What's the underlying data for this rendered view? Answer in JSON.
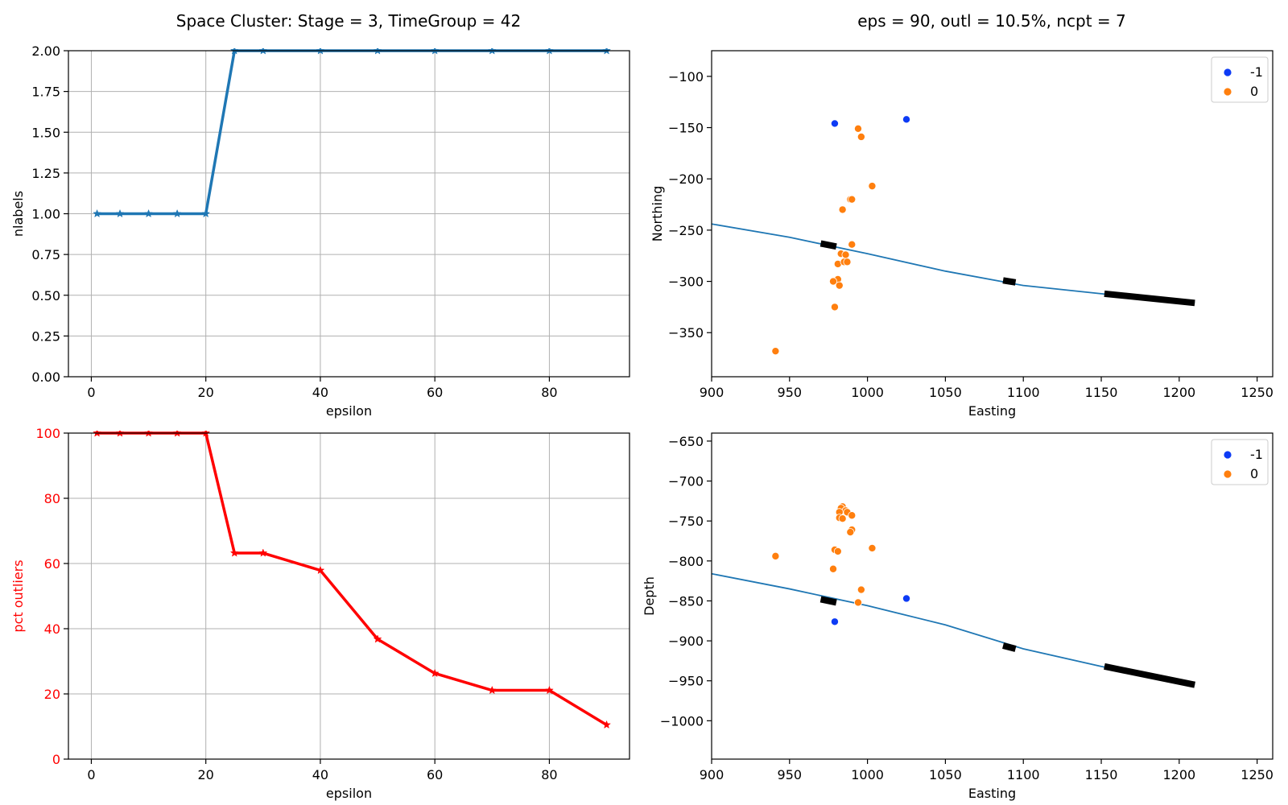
{
  "titles": {
    "left": "Space Cluster: Stage = 3, TimeGroup = 42",
    "right": "eps = 90, outl = 10.5%, ncpt = 7"
  },
  "colors": {
    "nlabels_line": "#1f77b4",
    "outliers_line": "#ff0000",
    "cluster_-1": "#0d3bf5",
    "cluster_0": "#ff7f0e",
    "well_path": "#1f77b4",
    "stage_segments": "#000000"
  },
  "chart_data": [
    {
      "type": "line",
      "xlabel": "epsilon",
      "ylabel": "nlabels",
      "xlim": [
        -4,
        94
      ],
      "ylim": [
        0,
        2
      ],
      "xticks": [
        "0",
        "20",
        "40",
        "60",
        "80"
      ],
      "yticks": [
        "0.00",
        "0.25",
        "0.50",
        "0.75",
        "1.00",
        "1.25",
        "1.50",
        "1.75",
        "2.00"
      ],
      "grid": true,
      "marker": "star",
      "x": [
        1,
        5,
        10,
        15,
        20,
        25,
        30,
        40,
        50,
        60,
        70,
        80,
        90
      ],
      "series": [
        {
          "values": [
            1,
            1,
            1,
            1,
            1,
            2,
            2,
            2,
            2,
            2,
            2,
            2,
            2
          ]
        }
      ]
    },
    {
      "type": "scatter",
      "xlabel": "Easting",
      "ylabel": "Northing",
      "xlim": [
        900,
        1260
      ],
      "ylim": [
        -393,
        -75
      ],
      "xticks": [
        "900",
        "950",
        "1000",
        "1050",
        "1100",
        "1150",
        "1200",
        "1250"
      ],
      "yticks": [
        "−100",
        "−150",
        "−200",
        "−250",
        "−300",
        "−350"
      ],
      "grid": false,
      "legend": {
        "placement": "top-right",
        "entries": [
          "-1",
          "0"
        ]
      },
      "series": [
        {
          "name": "-1",
          "points": [
            [
              979,
              -146
            ],
            [
              1025,
              -142
            ]
          ]
        },
        {
          "name": "0",
          "points": [
            [
              994,
              -151
            ],
            [
              996,
              -159
            ],
            [
              1003,
              -207
            ],
            [
              989,
              -220
            ],
            [
              990,
              -220
            ],
            [
              984,
              -230
            ],
            [
              990,
              -264
            ],
            [
              983,
              -273
            ],
            [
              986,
              -274
            ],
            [
              981,
              -283
            ],
            [
              985,
              -281
            ],
            [
              987,
              -281
            ],
            [
              981,
              -298
            ],
            [
              978,
              -300
            ],
            [
              982,
              -304
            ],
            [
              979,
              -325
            ],
            [
              941,
              -368
            ]
          ]
        }
      ],
      "well_path": {
        "points": [
          [
            900,
            -244
          ],
          [
            950,
            -257
          ],
          [
            1000,
            -273
          ],
          [
            1050,
            -290
          ],
          [
            1100,
            -304
          ],
          [
            1150,
            -312
          ],
          [
            1210,
            -321
          ]
        ]
      },
      "stage_segments": [
        {
          "from": [
            970,
            -263
          ],
          "to": [
            980,
            -266
          ]
        },
        {
          "from": [
            1087,
            -299
          ],
          "to": [
            1095,
            -301
          ]
        },
        {
          "from": [
            1152,
            -312
          ],
          "to": [
            1210,
            -321
          ]
        }
      ]
    },
    {
      "type": "line",
      "xlabel": "epsilon",
      "ylabel": "pct outliers",
      "xlim": [
        -4,
        94
      ],
      "ylim": [
        0,
        100
      ],
      "xticks": [
        "0",
        "20",
        "40",
        "60",
        "80"
      ],
      "yticks": [
        "0",
        "20",
        "40",
        "60",
        "80",
        "100"
      ],
      "grid": true,
      "marker": "star",
      "x": [
        1,
        5,
        10,
        15,
        20,
        25,
        30,
        40,
        50,
        60,
        70,
        80,
        90
      ],
      "series": [
        {
          "values": [
            100,
            100,
            100,
            100,
            100,
            63.2,
            63.2,
            57.9,
            36.8,
            26.3,
            21.1,
            21.1,
            10.5
          ]
        }
      ]
    },
    {
      "type": "scatter",
      "xlabel": "Easting",
      "ylabel": "Depth",
      "xlim": [
        900,
        1260
      ],
      "ylim": [
        -1048,
        -640
      ],
      "xticks": [
        "900",
        "950",
        "1000",
        "1050",
        "1100",
        "1150",
        "1200",
        "1250"
      ],
      "yticks": [
        "−650",
        "−700",
        "−750",
        "−800",
        "−850",
        "−900",
        "−950",
        "−1000"
      ],
      "grid": false,
      "legend": {
        "placement": "top-right",
        "entries": [
          "-1",
          "0"
        ]
      },
      "series": [
        {
          "name": "-1",
          "points": [
            [
              1025,
              -847
            ],
            [
              979,
              -876
            ]
          ]
        },
        {
          "name": "0",
          "points": [
            [
              984,
              -732
            ],
            [
              983,
              -734
            ],
            [
              986,
              -737
            ],
            [
              982,
              -739
            ],
            [
              987,
              -739
            ],
            [
              990,
              -743
            ],
            [
              982,
              -746
            ],
            [
              984,
              -747
            ],
            [
              990,
              -761
            ],
            [
              989,
              -764
            ],
            [
              979,
              -786
            ],
            [
              981,
              -788
            ],
            [
              1003,
              -784
            ],
            [
              941,
              -794
            ],
            [
              978,
              -810
            ],
            [
              996,
              -836
            ],
            [
              994,
              -852
            ]
          ]
        }
      ],
      "well_path": {
        "points": [
          [
            900,
            -816
          ],
          [
            950,
            -835
          ],
          [
            1000,
            -856
          ],
          [
            1050,
            -880
          ],
          [
            1100,
            -910
          ],
          [
            1150,
            -932
          ],
          [
            1210,
            -955
          ]
        ]
      },
      "stage_segments": [
        {
          "from": [
            970,
            -848
          ],
          "to": [
            980,
            -852
          ]
        },
        {
          "from": [
            1087,
            -906
          ],
          "to": [
            1095,
            -910
          ]
        },
        {
          "from": [
            1152,
            -932
          ],
          "to": [
            1210,
            -955
          ]
        }
      ]
    }
  ]
}
